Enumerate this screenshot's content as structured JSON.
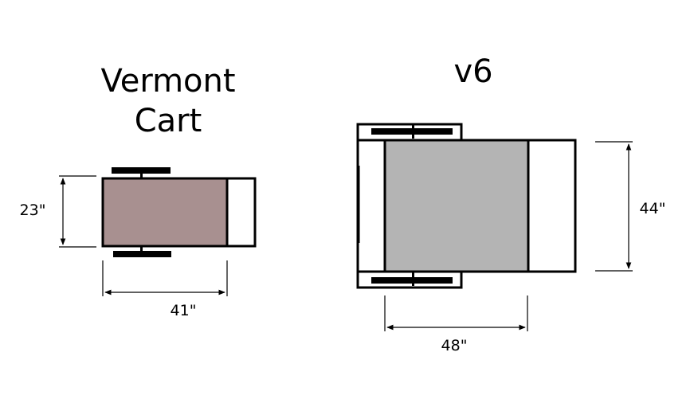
{
  "vermont": {
    "title_line1": "Vermont",
    "title_line2": "Cart",
    "width_label": "23\"",
    "length_label": "41\"",
    "bed_color": "#a89090"
  },
  "v6": {
    "title": "v6",
    "width_label": "44\"",
    "length_label": "48\"",
    "bed_color": "#b4b4b4"
  }
}
